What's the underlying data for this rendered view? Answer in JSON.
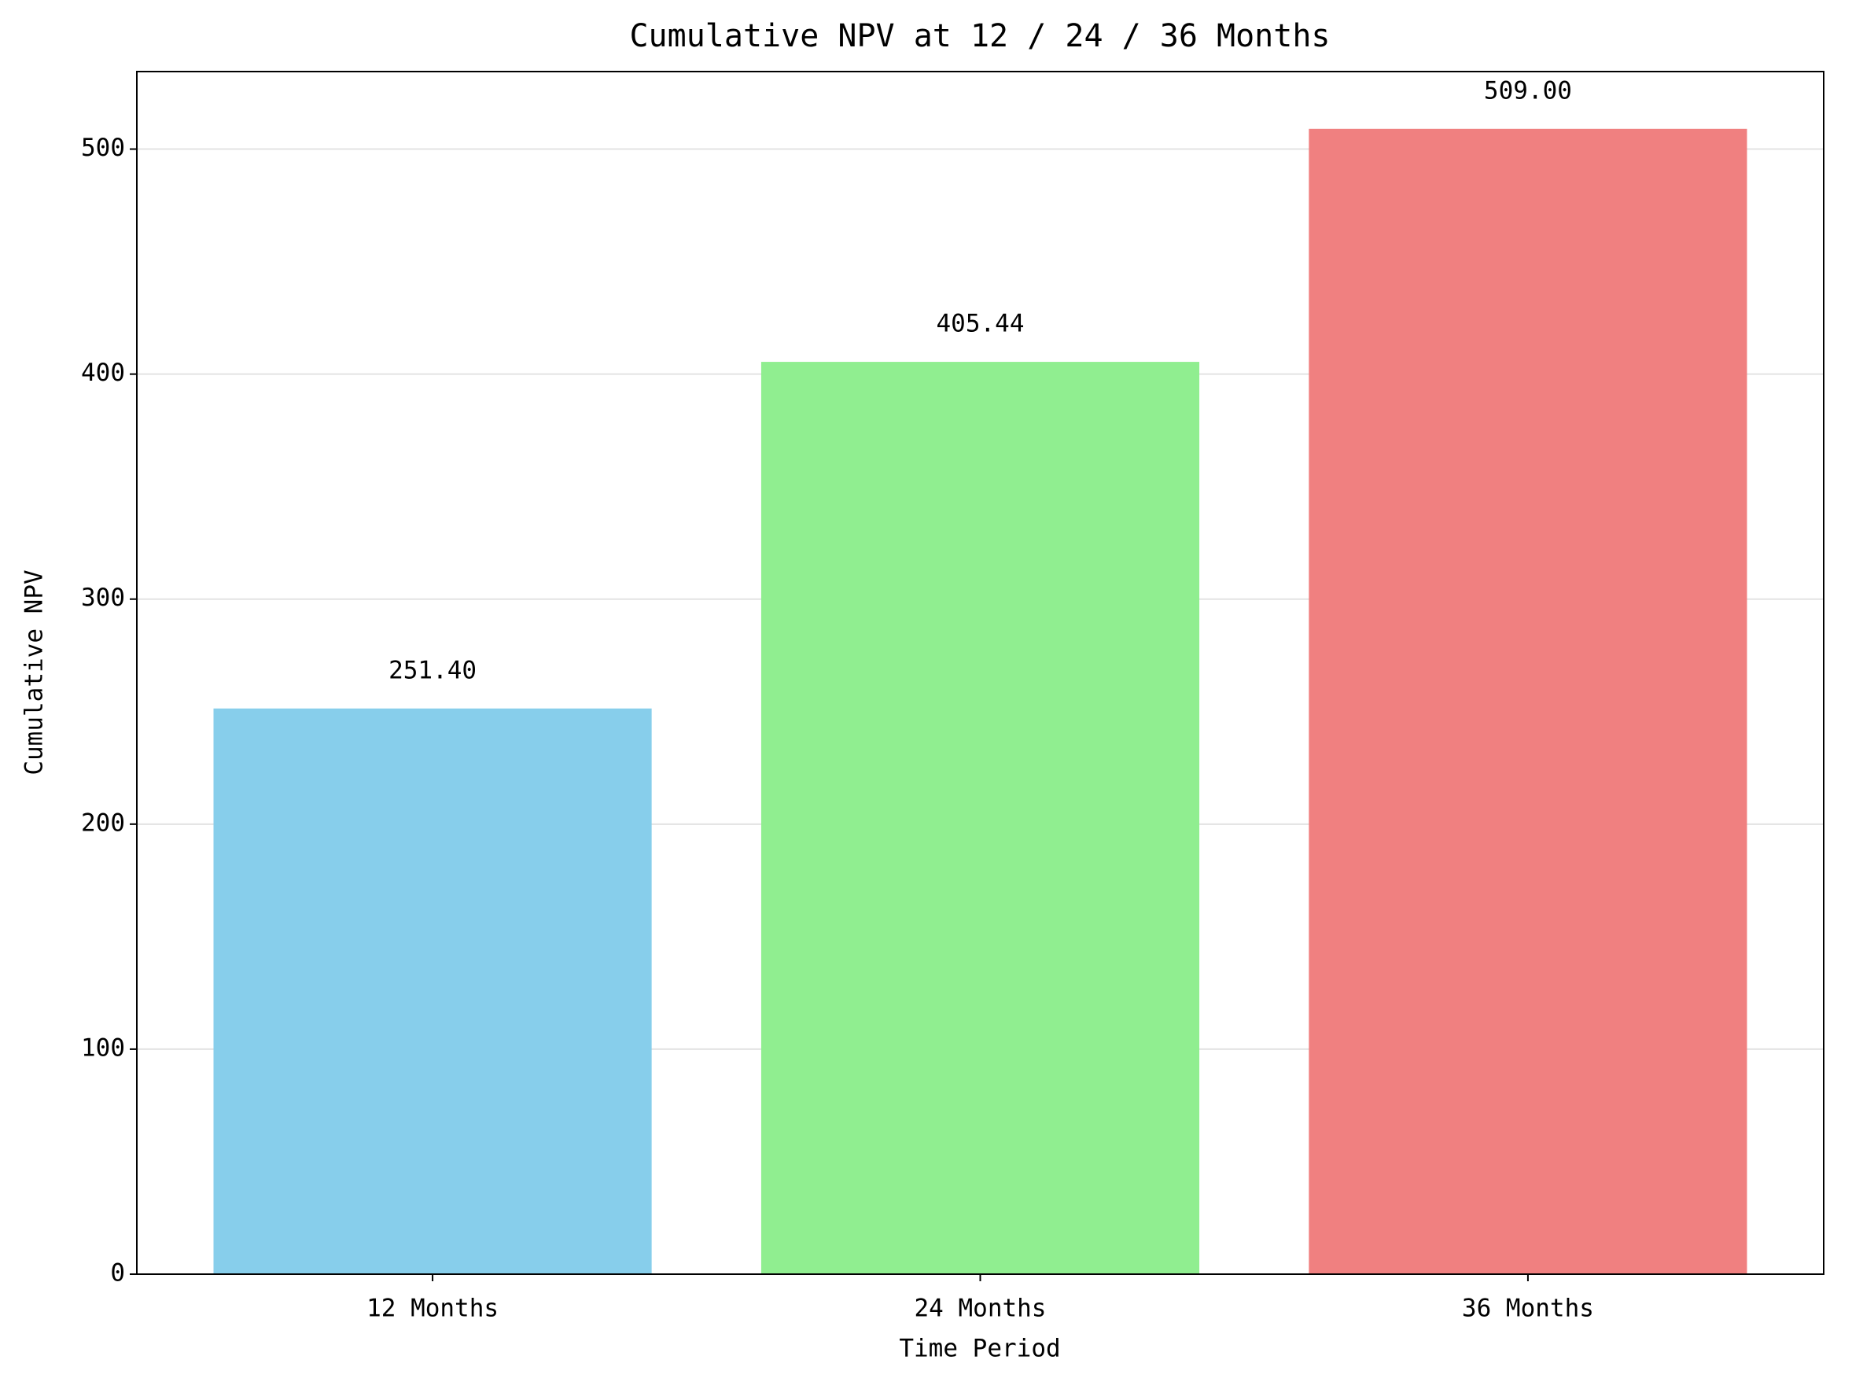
{
  "chart_data": {
    "type": "bar",
    "title": "Cumulative NPV at 12 / 24 / 36 Months",
    "x_label": "Time Period",
    "y_label": "Cumulative NPV",
    "categories": [
      "12 Months",
      "24 Months",
      "36 Months"
    ],
    "values": [
      251.4,
      405.44,
      509.0
    ],
    "value_labels": [
      "251.40",
      "405.44",
      "509.00"
    ],
    "colors": [
      "#87ceeb",
      "#90ee90",
      "#f08080"
    ],
    "ylim": [
      0,
      534.45
    ],
    "yticks": [
      0,
      100,
      200,
      300,
      400,
      500
    ],
    "grid": true
  }
}
